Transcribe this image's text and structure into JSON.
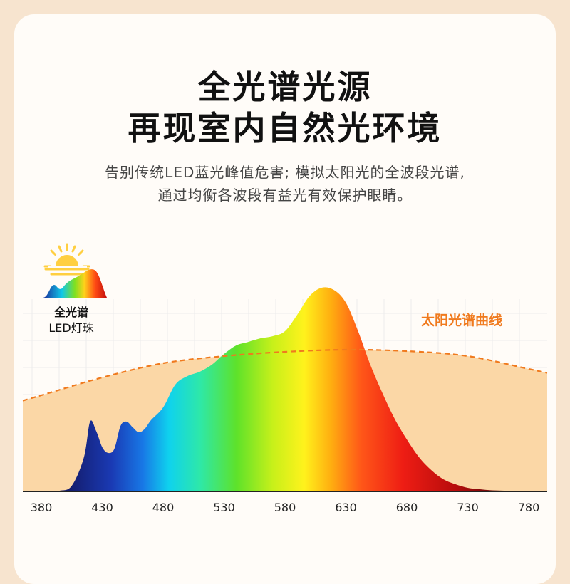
{
  "header": {
    "title_line1": "全光谱光源",
    "title_line2": "再现室内自然光环境",
    "subtitle_line1": "告别传统LED蓝光峰值危害; 模拟太阳光的全波段光谱,",
    "subtitle_line2": "通过均衡各波段有益光有效保护眼睛。"
  },
  "badge": {
    "line1": "全光谱",
    "line2": "LED灯珠"
  },
  "chart_data": {
    "type": "area",
    "x_ticks": [
      380,
      430,
      480,
      530,
      580,
      630,
      680,
      730,
      780
    ],
    "xlim": [
      380,
      780
    ],
    "grid": true,
    "series": [
      {
        "name": "全光谱LED灯珠",
        "style": "rainbow-filled-area",
        "x": [
          380,
          395,
          405,
          415,
          420,
          425,
          430,
          435,
          440,
          445,
          450,
          455,
          460,
          465,
          470,
          480,
          490,
          500,
          510,
          520,
          530,
          540,
          550,
          560,
          570,
          580,
          590,
          600,
          610,
          620,
          630,
          640,
          650,
          660,
          670,
          680,
          690,
          700,
          710,
          720,
          730,
          740,
          750,
          760,
          770,
          780
        ],
        "values": [
          0,
          1,
          8,
          48,
          98,
          85,
          62,
          54,
          60,
          92,
          98,
          90,
          83,
          88,
          100,
          118,
          150,
          162,
          168,
          178,
          193,
          205,
          210,
          215,
          218,
          225,
          248,
          274,
          286,
          283,
          265,
          225,
          178,
          138,
          102,
          73,
          48,
          30,
          17,
          10,
          5,
          3,
          1.5,
          1,
          0.5,
          0
        ],
        "relative_scale_max": 300
      },
      {
        "name": "太阳光谱曲线",
        "style": "orange-dashed",
        "color": "#f07a1e",
        "x": [
          380,
          430,
          480,
          530,
          580,
          630,
          680,
          730,
          780
        ],
        "values": [
          135,
          160,
          180,
          190,
          196,
          199,
          197,
          190,
          172
        ],
        "relative_scale_max": 300
      }
    ],
    "legend_labels": [
      "全光谱",
      "LED灯珠",
      "太阳光谱曲线"
    ],
    "sun_curve_label": "太阳光谱曲线",
    "sun_fill_color": "#fbd7a6",
    "axis_color": "#222222"
  }
}
